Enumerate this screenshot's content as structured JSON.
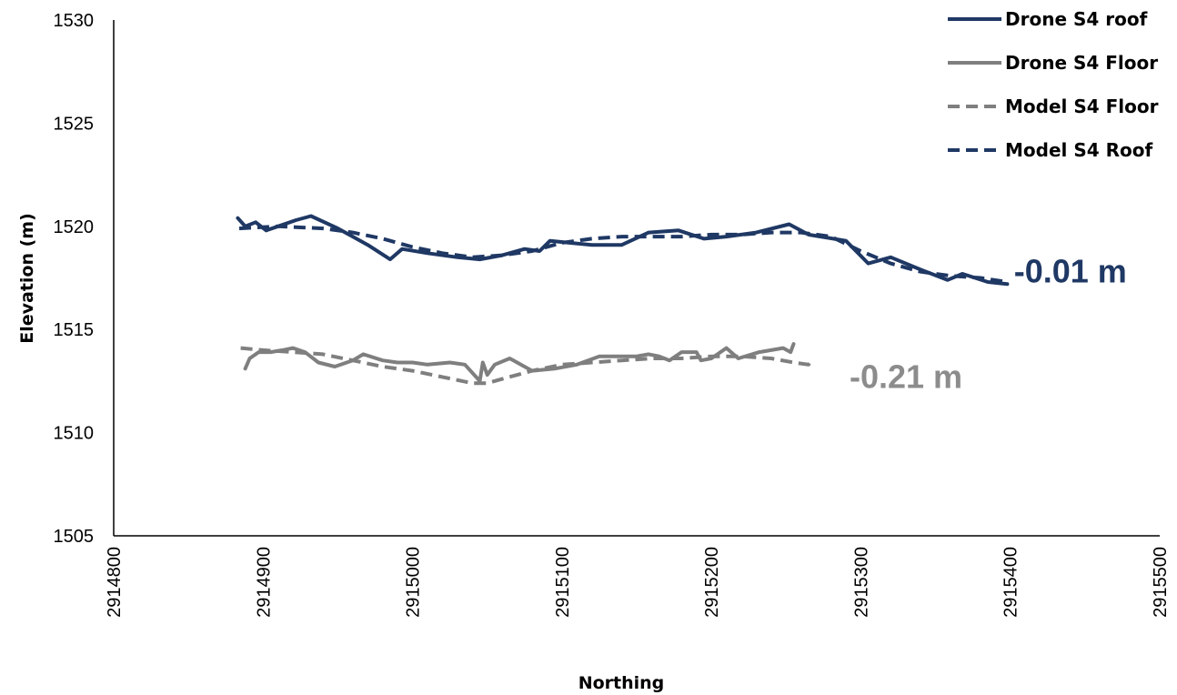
{
  "chart_data": {
    "type": "line",
    "xlabel": "Northing",
    "ylabel": "Elevation (m)",
    "xlim": [
      2914800,
      2915500
    ],
    "ylim": [
      1505,
      1530
    ],
    "xticks": [
      2914800,
      2914900,
      2915000,
      2915100,
      2915200,
      2915300,
      2915400,
      2915500
    ],
    "yticks": [
      1505,
      1510,
      1515,
      1520,
      1525,
      1530
    ],
    "xtick_labels": [
      "2914800",
      "2914900",
      "2915000",
      "2915100",
      "2915200",
      "2915300",
      "2915400",
      "2915500"
    ],
    "ytick_labels": [
      "1505",
      "1510",
      "1515",
      "1520",
      "1525",
      "1530"
    ],
    "grid": false,
    "legend_position": "top-right",
    "series": [
      {
        "name": "Drone S4 roof",
        "color": "#1f3864",
        "dash": "solid",
        "x": [
          2914883,
          2914888,
          2914895,
          2914902,
          2914910,
          2914922,
          2914932,
          2914950,
          2914970,
          2914985,
          2914993,
          2915010,
          2915030,
          2915045,
          2915060,
          2915075,
          2915085,
          2915092,
          2915105,
          2915120,
          2915140,
          2915158,
          2915178,
          2915195,
          2915210,
          2915230,
          2915252,
          2915265,
          2915290,
          2915305,
          2915320,
          2915340,
          2915358,
          2915368,
          2915385,
          2915398
        ],
        "values": [
          1520.4,
          1520.0,
          1520.2,
          1519.8,
          1520.0,
          1520.3,
          1520.5,
          1519.9,
          1519.1,
          1518.4,
          1518.9,
          1518.7,
          1518.5,
          1518.4,
          1518.6,
          1518.9,
          1518.8,
          1519.3,
          1519.2,
          1519.1,
          1519.1,
          1519.7,
          1519.8,
          1519.4,
          1519.5,
          1519.7,
          1520.1,
          1519.6,
          1519.3,
          1518.2,
          1518.5,
          1517.9,
          1517.4,
          1517.7,
          1517.3,
          1517.2
        ]
      },
      {
        "name": "Drone S4 Floor",
        "color": "#7f7f7f",
        "dash": "solid",
        "x": [
          2914888,
          2914891,
          2914897,
          2914905,
          2914913,
          2914920,
          2914928,
          2914937,
          2914948,
          2914960,
          2914967,
          2914980,
          2914990,
          2915000,
          2915010,
          2915025,
          2915035,
          2915045,
          2915047,
          2915050,
          2915055,
          2915065,
          2915080,
          2915095,
          2915110,
          2915125,
          2915140,
          2915150,
          2915158,
          2915165,
          2915172,
          2915180,
          2915190,
          2915193,
          2915200,
          2915210,
          2915218,
          2915232,
          2915248,
          2915253,
          2915255
        ],
        "values": [
          1513.1,
          1513.6,
          1513.9,
          1513.9,
          1514.0,
          1514.1,
          1513.9,
          1513.4,
          1513.2,
          1513.5,
          1513.8,
          1513.5,
          1513.4,
          1513.4,
          1513.3,
          1513.4,
          1513.3,
          1512.5,
          1513.4,
          1512.8,
          1513.3,
          1513.6,
          1513.0,
          1513.1,
          1513.3,
          1513.7,
          1513.7,
          1513.7,
          1513.8,
          1513.7,
          1513.5,
          1513.9,
          1513.9,
          1513.5,
          1513.6,
          1514.1,
          1513.6,
          1513.9,
          1514.1,
          1513.9,
          1514.3
        ]
      },
      {
        "name": "Model S4 Floor",
        "color": "#7f7f7f",
        "dash": "dashed",
        "x": [
          2914885,
          2914900,
          2914920,
          2914940,
          2914960,
          2914980,
          2915000,
          2915020,
          2915040,
          2915050,
          2915060,
          2915080,
          2915100,
          2915120,
          2915140,
          2915160,
          2915180,
          2915200,
          2915220,
          2915240,
          2915255,
          2915265,
          2915268
        ],
        "values": [
          1514.1,
          1514.0,
          1513.9,
          1513.8,
          1513.5,
          1513.2,
          1513.0,
          1512.7,
          1512.4,
          1512.4,
          1512.6,
          1513.0,
          1513.3,
          1513.4,
          1513.5,
          1513.6,
          1513.6,
          1513.7,
          1513.7,
          1513.6,
          1513.4,
          1513.3,
          1513.6
        ]
      },
      {
        "name": "Model S4 Roof",
        "color": "#1f3864",
        "dash": "dashed",
        "x": [
          2914884,
          2914910,
          2914940,
          2914960,
          2914980,
          2915000,
          2915020,
          2915040,
          2915060,
          2915080,
          2915100,
          2915120,
          2915140,
          2915160,
          2915180,
          2915200,
          2915220,
          2915240,
          2915260,
          2915280,
          2915300,
          2915320,
          2915340,
          2915360,
          2915380,
          2915398
        ],
        "values": [
          1519.9,
          1520.0,
          1519.9,
          1519.7,
          1519.4,
          1519.0,
          1518.7,
          1518.5,
          1518.6,
          1518.8,
          1519.2,
          1519.4,
          1519.5,
          1519.5,
          1519.5,
          1519.6,
          1519.6,
          1519.7,
          1519.7,
          1519.5,
          1518.8,
          1518.2,
          1517.8,
          1517.6,
          1517.5,
          1517.3
        ]
      }
    ],
    "annotations": [
      {
        "text": "-0.01 m",
        "x": 2915400,
        "y": 1517.8,
        "color": "#1f3864"
      },
      {
        "text": "-0.21 m",
        "x": 2915290,
        "y": 1512.7,
        "color": "#8c8c8c"
      }
    ]
  }
}
